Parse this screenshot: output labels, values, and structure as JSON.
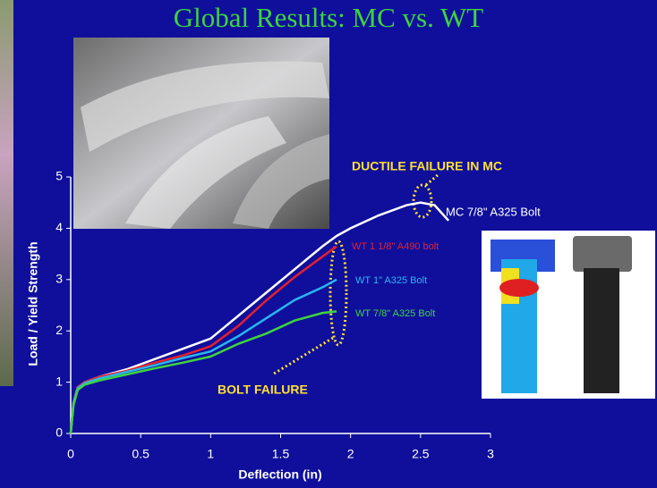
{
  "chart_data": {
    "type": "line",
    "title": "Global Results: MC vs. WT",
    "x_label": "Deflection (in)",
    "y_label": "Load / Yield Strength",
    "xlim": [
      0,
      3
    ],
    "xticks": [
      0,
      0.5,
      1,
      1.5,
      2,
      2.5,
      3
    ],
    "ylim": [
      0,
      5
    ],
    "yticks": [
      0,
      1,
      2,
      3,
      4,
      5
    ],
    "x": [
      0,
      0.02,
      0.05,
      0.1,
      0.2,
      0.4,
      0.6,
      0.8,
      1.0,
      1.2,
      1.4,
      1.6,
      1.8,
      1.9,
      2.0,
      2.2,
      2.4,
      2.5,
      2.6,
      2.7
    ],
    "series": [
      {
        "name": "MC 7/8\" A325 Bolt",
        "color": "#ffffff",
        "values": [
          0,
          0.6,
          0.9,
          1.0,
          1.1,
          1.25,
          1.45,
          1.65,
          1.85,
          2.3,
          2.75,
          3.2,
          3.65,
          3.85,
          4.0,
          4.25,
          4.45,
          4.5,
          4.45,
          4.15
        ]
      },
      {
        "name": "WT 1 1/8\" A490 bolt",
        "color": "#e8202a",
        "values": [
          0,
          0.6,
          0.9,
          1.0,
          1.1,
          1.22,
          1.38,
          1.52,
          1.7,
          2.1,
          2.6,
          3.05,
          3.45,
          3.65,
          null,
          null,
          null,
          null,
          null,
          null
        ]
      },
      {
        "name": "WT 1\" A325 Bolt",
        "color": "#29b6f0",
        "values": [
          0,
          0.58,
          0.88,
          0.98,
          1.07,
          1.2,
          1.33,
          1.47,
          1.6,
          1.9,
          2.25,
          2.6,
          2.85,
          3.0,
          null,
          null,
          null,
          null,
          null,
          null
        ]
      },
      {
        "name": "WT 7/8\" A325 Bolt",
        "color": "#3fd43f",
        "values": [
          0,
          0.55,
          0.85,
          0.95,
          1.03,
          1.15,
          1.27,
          1.38,
          1.5,
          1.75,
          1.95,
          2.2,
          2.35,
          2.38,
          null,
          null,
          null,
          null,
          null,
          null
        ]
      }
    ],
    "annotations": [
      "DUCTILE FAILURE IN MC",
      "BOLT FAILURE"
    ]
  }
}
